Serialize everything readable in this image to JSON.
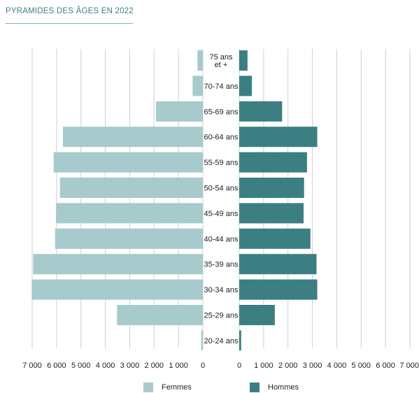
{
  "title": "PYRAMIDES DES ÂGES EN 2022",
  "colors": {
    "femmes": "#a7cacc",
    "hommes": "#3c7f82",
    "grid": "#cfcfcf"
  },
  "chart_data": {
    "type": "bar",
    "orientation": "horizontal",
    "layout": "population-pyramid",
    "title": "PYRAMIDES DES ÂGES EN 2022",
    "categories": [
      "75 ans et +",
      "70-74 ans",
      "65-69 ans",
      "60-64 ans",
      "55-59 ans",
      "50-54 ans",
      "45-49 ans",
      "40-44 ans",
      "35-39 ans",
      "30-34 ans",
      "25-29 ans",
      "20-24 ans"
    ],
    "category_lines": [
      [
        "75 ans",
        "et +"
      ],
      [
        "70-74 ans"
      ],
      [
        "65-69 ans"
      ],
      [
        "60-64 ans"
      ],
      [
        "55-59 ans"
      ],
      [
        "50-54 ans"
      ],
      [
        "45-49 ans"
      ],
      [
        "40-44 ans"
      ],
      [
        "35-39 ans"
      ],
      [
        "30-34 ans"
      ],
      [
        "25-29 ans"
      ],
      [
        "20-24 ans"
      ]
    ],
    "series": [
      {
        "name": "Femmes",
        "side": "left",
        "values": [
          220,
          420,
          1920,
          5740,
          6120,
          5860,
          6020,
          6060,
          6960,
          7020,
          3520,
          70
        ]
      },
      {
        "name": "Hommes",
        "side": "right",
        "values": [
          340,
          520,
          1760,
          3200,
          2780,
          2660,
          2640,
          2920,
          3170,
          3200,
          1460,
          80
        ]
      }
    ],
    "x_ticks_left": [
      "7 000",
      "6 000",
      "5 000",
      "4 000",
      "3 000",
      "2 000",
      "1 000",
      "0"
    ],
    "x_ticks_right": [
      "0",
      "1 000",
      "2 000",
      "3 000",
      "4 000",
      "5 000",
      "6 000",
      "7 000"
    ],
    "xlim": [
      0,
      7000
    ],
    "grid": true,
    "legend_position": "bottom"
  }
}
